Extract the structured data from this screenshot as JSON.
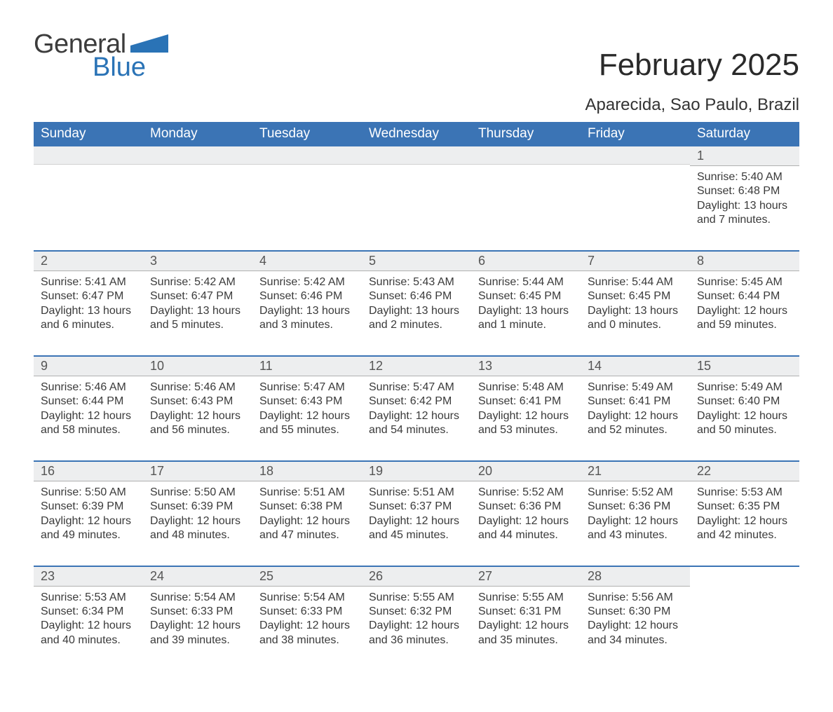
{
  "logo": {
    "general": "General",
    "blue": "Blue",
    "flag_color": "#2a73b6"
  },
  "title": "February 2025",
  "location": "Aparecida, Sao Paulo, Brazil",
  "colors": {
    "primary_blue": "#3b74b5",
    "day_header_bg": "#edeeef",
    "body_text": "#444444"
  },
  "weekday_labels": [
    "Sunday",
    "Monday",
    "Tuesday",
    "Wednesday",
    "Thursday",
    "Friday",
    "Saturday"
  ],
  "weeks": [
    [
      null,
      null,
      null,
      null,
      null,
      null,
      {
        "n": "1",
        "sunrise": "Sunrise: 5:40 AM",
        "sunset": "Sunset: 6:48 PM",
        "daylight": "Daylight: 13 hours and 7 minutes."
      }
    ],
    [
      {
        "n": "2",
        "sunrise": "Sunrise: 5:41 AM",
        "sunset": "Sunset: 6:47 PM",
        "daylight": "Daylight: 13 hours and 6 minutes."
      },
      {
        "n": "3",
        "sunrise": "Sunrise: 5:42 AM",
        "sunset": "Sunset: 6:47 PM",
        "daylight": "Daylight: 13 hours and 5 minutes."
      },
      {
        "n": "4",
        "sunrise": "Sunrise: 5:42 AM",
        "sunset": "Sunset: 6:46 PM",
        "daylight": "Daylight: 13 hours and 3 minutes."
      },
      {
        "n": "5",
        "sunrise": "Sunrise: 5:43 AM",
        "sunset": "Sunset: 6:46 PM",
        "daylight": "Daylight: 13 hours and 2 minutes."
      },
      {
        "n": "6",
        "sunrise": "Sunrise: 5:44 AM",
        "sunset": "Sunset: 6:45 PM",
        "daylight": "Daylight: 13 hours and 1 minute."
      },
      {
        "n": "7",
        "sunrise": "Sunrise: 5:44 AM",
        "sunset": "Sunset: 6:45 PM",
        "daylight": "Daylight: 13 hours and 0 minutes."
      },
      {
        "n": "8",
        "sunrise": "Sunrise: 5:45 AM",
        "sunset": "Sunset: 6:44 PM",
        "daylight": "Daylight: 12 hours and 59 minutes."
      }
    ],
    [
      {
        "n": "9",
        "sunrise": "Sunrise: 5:46 AM",
        "sunset": "Sunset: 6:44 PM",
        "daylight": "Daylight: 12 hours and 58 minutes."
      },
      {
        "n": "10",
        "sunrise": "Sunrise: 5:46 AM",
        "sunset": "Sunset: 6:43 PM",
        "daylight": "Daylight: 12 hours and 56 minutes."
      },
      {
        "n": "11",
        "sunrise": "Sunrise: 5:47 AM",
        "sunset": "Sunset: 6:43 PM",
        "daylight": "Daylight: 12 hours and 55 minutes."
      },
      {
        "n": "12",
        "sunrise": "Sunrise: 5:47 AM",
        "sunset": "Sunset: 6:42 PM",
        "daylight": "Daylight: 12 hours and 54 minutes."
      },
      {
        "n": "13",
        "sunrise": "Sunrise: 5:48 AM",
        "sunset": "Sunset: 6:41 PM",
        "daylight": "Daylight: 12 hours and 53 minutes."
      },
      {
        "n": "14",
        "sunrise": "Sunrise: 5:49 AM",
        "sunset": "Sunset: 6:41 PM",
        "daylight": "Daylight: 12 hours and 52 minutes."
      },
      {
        "n": "15",
        "sunrise": "Sunrise: 5:49 AM",
        "sunset": "Sunset: 6:40 PM",
        "daylight": "Daylight: 12 hours and 50 minutes."
      }
    ],
    [
      {
        "n": "16",
        "sunrise": "Sunrise: 5:50 AM",
        "sunset": "Sunset: 6:39 PM",
        "daylight": "Daylight: 12 hours and 49 minutes."
      },
      {
        "n": "17",
        "sunrise": "Sunrise: 5:50 AM",
        "sunset": "Sunset: 6:39 PM",
        "daylight": "Daylight: 12 hours and 48 minutes."
      },
      {
        "n": "18",
        "sunrise": "Sunrise: 5:51 AM",
        "sunset": "Sunset: 6:38 PM",
        "daylight": "Daylight: 12 hours and 47 minutes."
      },
      {
        "n": "19",
        "sunrise": "Sunrise: 5:51 AM",
        "sunset": "Sunset: 6:37 PM",
        "daylight": "Daylight: 12 hours and 45 minutes."
      },
      {
        "n": "20",
        "sunrise": "Sunrise: 5:52 AM",
        "sunset": "Sunset: 6:36 PM",
        "daylight": "Daylight: 12 hours and 44 minutes."
      },
      {
        "n": "21",
        "sunrise": "Sunrise: 5:52 AM",
        "sunset": "Sunset: 6:36 PM",
        "daylight": "Daylight: 12 hours and 43 minutes."
      },
      {
        "n": "22",
        "sunrise": "Sunrise: 5:53 AM",
        "sunset": "Sunset: 6:35 PM",
        "daylight": "Daylight: 12 hours and 42 minutes."
      }
    ],
    [
      {
        "n": "23",
        "sunrise": "Sunrise: 5:53 AM",
        "sunset": "Sunset: 6:34 PM",
        "daylight": "Daylight: 12 hours and 40 minutes."
      },
      {
        "n": "24",
        "sunrise": "Sunrise: 5:54 AM",
        "sunset": "Sunset: 6:33 PM",
        "daylight": "Daylight: 12 hours and 39 minutes."
      },
      {
        "n": "25",
        "sunrise": "Sunrise: 5:54 AM",
        "sunset": "Sunset: 6:33 PM",
        "daylight": "Daylight: 12 hours and 38 minutes."
      },
      {
        "n": "26",
        "sunrise": "Sunrise: 5:55 AM",
        "sunset": "Sunset: 6:32 PM",
        "daylight": "Daylight: 12 hours and 36 minutes."
      },
      {
        "n": "27",
        "sunrise": "Sunrise: 5:55 AM",
        "sunset": "Sunset: 6:31 PM",
        "daylight": "Daylight: 12 hours and 35 minutes."
      },
      {
        "n": "28",
        "sunrise": "Sunrise: 5:56 AM",
        "sunset": "Sunset: 6:30 PM",
        "daylight": "Daylight: 12 hours and 34 minutes."
      },
      null
    ]
  ]
}
